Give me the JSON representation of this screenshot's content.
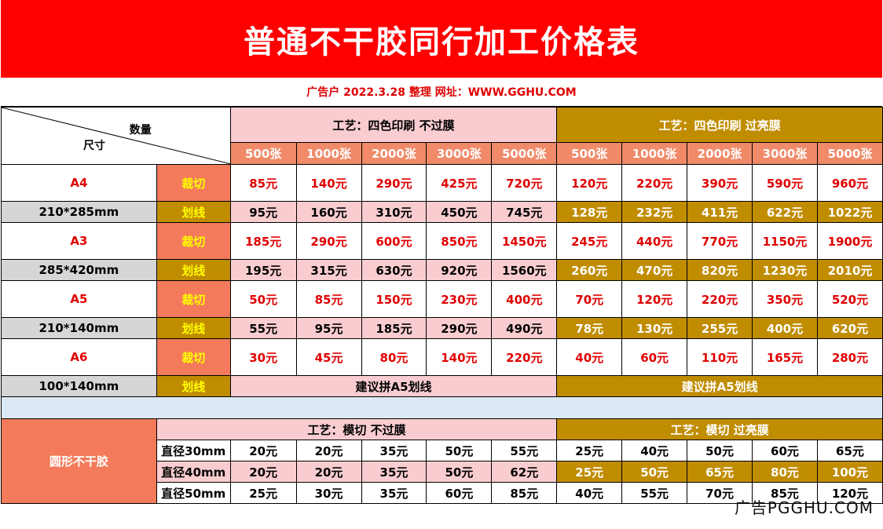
{
  "title": "普通不干胶同行加工价格表",
  "subtitle": "广告户 2022.3.28 整理 网址：WWW.GGHU.COM",
  "header": {
    "qty_label": "数量",
    "size_label": "尺寸",
    "left_process": "工艺：四色印刷 不过膜",
    "right_process": "工艺：四色印刷 过亮膜",
    "quantities": [
      "500张",
      "1000张",
      "2000张",
      "3000张",
      "5000张"
    ]
  },
  "rows": [
    {
      "size": "A4",
      "dims": "210*285mm",
      "cut_label": "裁切",
      "cut_left": [
        "85元",
        "140元",
        "290元",
        "425元",
        "720元"
      ],
      "cut_right": [
        "120元",
        "220元",
        "390元",
        "590元",
        "960元"
      ],
      "line_label": "划线",
      "line_left": [
        "95元",
        "160元",
        "310元",
        "450元",
        "745元"
      ],
      "line_right": [
        "128元",
        "232元",
        "411元",
        "622元",
        "1022元"
      ]
    },
    {
      "size": "A3",
      "dims": "285*420mm",
      "cut_label": "裁切",
      "cut_left": [
        "185元",
        "290元",
        "600元",
        "850元",
        "1450元"
      ],
      "cut_right": [
        "245元",
        "440元",
        "770元",
        "1150元",
        "1900元"
      ],
      "line_label": "划线",
      "line_left": [
        "195元",
        "315元",
        "630元",
        "920元",
        "1560元"
      ],
      "line_right": [
        "260元",
        "470元",
        "820元",
        "1230元",
        "2010元"
      ]
    },
    {
      "size": "A5",
      "dims": "210*140mm",
      "cut_label": "裁切",
      "cut_left": [
        "50元",
        "85元",
        "150元",
        "230元",
        "400元"
      ],
      "cut_right": [
        "70元",
        "120元",
        "220元",
        "350元",
        "520元"
      ],
      "line_label": "划线",
      "line_left": [
        "55元",
        "95元",
        "185元",
        "290元",
        "490元"
      ],
      "line_right": [
        "78元",
        "130元",
        "255元",
        "400元",
        "620元"
      ]
    },
    {
      "size": "A6",
      "dims": "100*140mm",
      "cut_label": "裁切",
      "cut_left": [
        "30元",
        "45元",
        "80元",
        "140元",
        "220元"
      ],
      "cut_right": [
        "40元",
        "60元",
        "110元",
        "165元",
        "280元"
      ],
      "line_label": "划线",
      "line_note_left": "建议拼A5划线",
      "line_note_right": "建议拼A5划线"
    }
  ],
  "round": {
    "label": "圆形不干胶",
    "left_process": "工艺：模切 不过膜",
    "right_process": "工艺：模切 过亮膜",
    "items": [
      {
        "dia": "直径30mm",
        "left": [
          "20元",
          "20元",
          "35元",
          "50元",
          "55元"
        ],
        "right": [
          "25元",
          "40元",
          "50元",
          "60元",
          "65元"
        ]
      },
      {
        "dia": "直径40mm",
        "left": [
          "20元",
          "20元",
          "35元",
          "50元",
          "62元"
        ],
        "right": [
          "25元",
          "50元",
          "65元",
          "80元",
          "100元"
        ]
      },
      {
        "dia": "直径50mm",
        "left": [
          "25元",
          "30元",
          "35元",
          "60元",
          "85元"
        ],
        "right": [
          "40元",
          "55元",
          "70元",
          "85元",
          "120元"
        ]
      }
    ]
  },
  "watermark": "广告PGGHU.COM",
  "colors": {
    "banner": "#ff0000",
    "pink": "#f9cdd0",
    "gold": "#c08c00",
    "salmon": "#f37a5a",
    "grey": "#d6d6d6",
    "lightblue": "#dce9f4"
  }
}
